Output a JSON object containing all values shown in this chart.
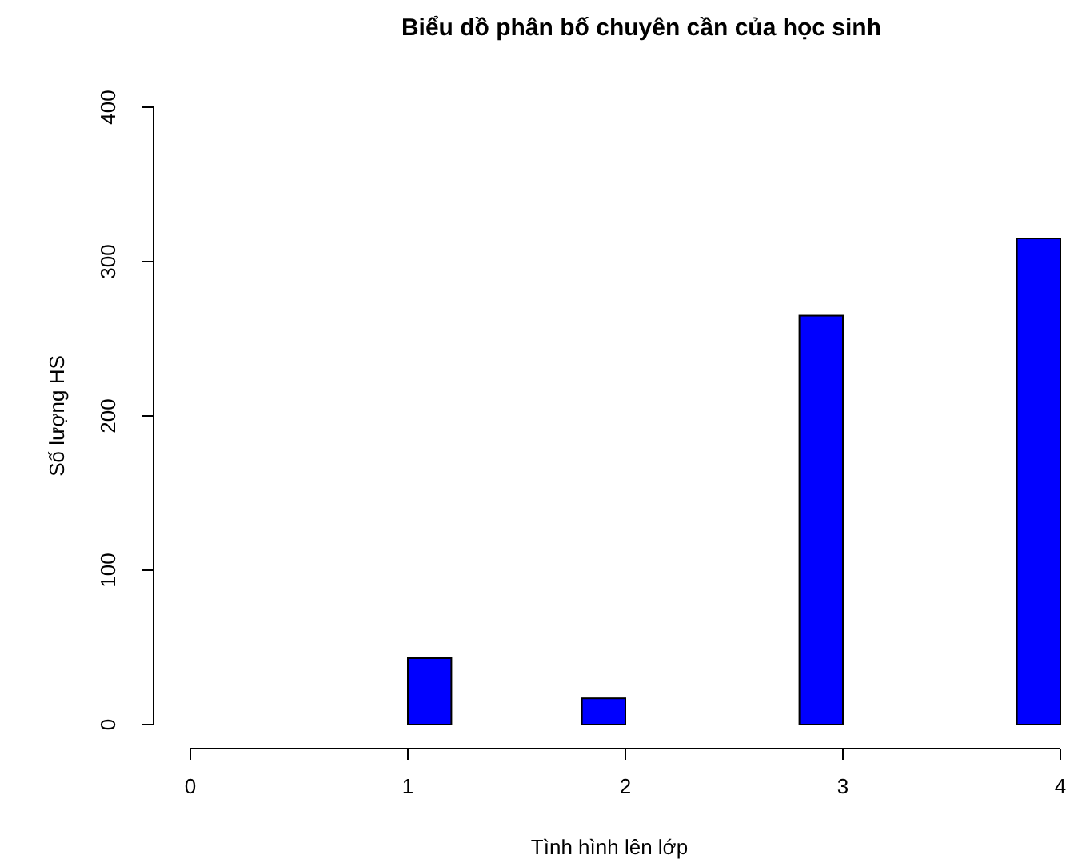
{
  "chart_data": {
    "type": "histogram",
    "title": "Biểu dồ phân bố chuyên cần của học sinh",
    "xlabel": "Tình hình lên lớp",
    "ylabel": "Số lượng HS",
    "bins": [
      1.0,
      1.2,
      1.4,
      1.6,
      1.8,
      2.0,
      2.2,
      2.4,
      2.6,
      2.8,
      3.0,
      3.2,
      3.4,
      3.6,
      3.8,
      4.0
    ],
    "values": [
      43,
      0,
      0,
      0,
      17,
      0,
      0,
      0,
      0,
      265,
      0,
      0,
      0,
      0,
      315
    ],
    "color": "#0000ff",
    "xlim": [
      0,
      4
    ],
    "xticks": [
      0,
      1,
      2,
      3,
      4
    ],
    "ylim": [
      0,
      400
    ],
    "yticks": [
      0,
      100,
      200,
      300,
      400
    ],
    "grid": false
  }
}
